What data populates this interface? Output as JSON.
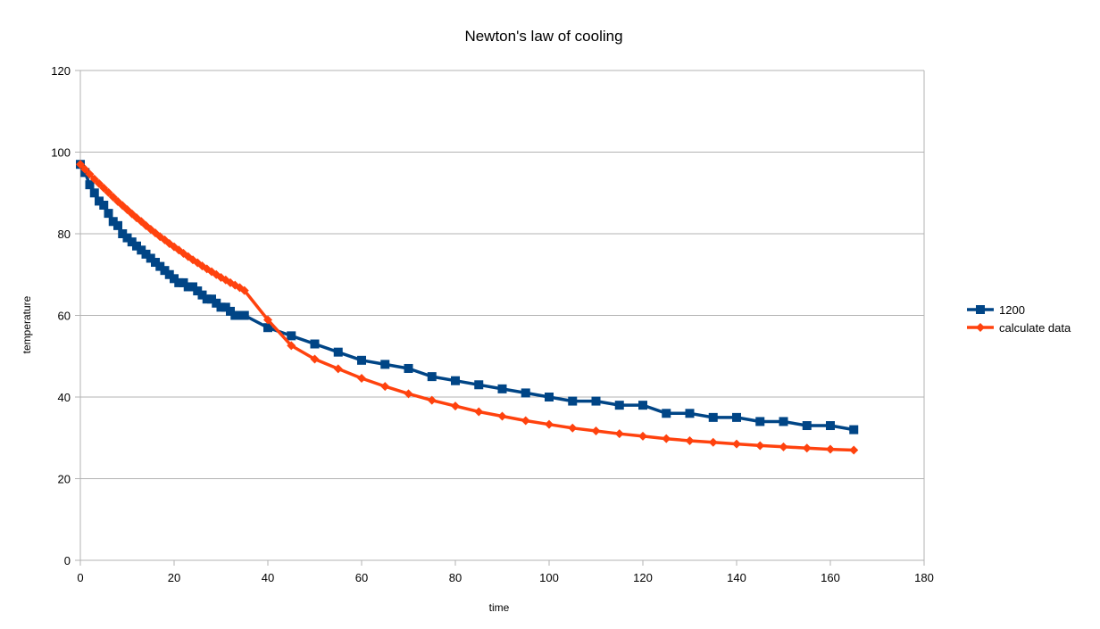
{
  "chart_data": {
    "type": "line",
    "title": "Newton's law of cooling",
    "xlabel": "time",
    "ylabel": "temperature",
    "xlim": [
      0,
      180
    ],
    "ylim": [
      0,
      120
    ],
    "xticks": [
      0,
      20,
      40,
      60,
      80,
      100,
      120,
      140,
      160,
      180
    ],
    "yticks": [
      0,
      20,
      40,
      60,
      80,
      100,
      120
    ],
    "grid": "horizontal",
    "legend_position": "right",
    "series": [
      {
        "name": "1200",
        "color": "#004586",
        "marker": "square",
        "x": [
          0,
          1,
          2,
          3,
          4,
          5,
          6,
          7,
          8,
          9,
          10,
          11,
          12,
          13,
          14,
          15,
          16,
          17,
          18,
          19,
          20,
          21,
          22,
          23,
          24,
          25,
          26,
          27,
          28,
          29,
          30,
          31,
          32,
          33,
          34,
          35,
          40,
          45,
          50,
          55,
          60,
          65,
          70,
          75,
          80,
          85,
          90,
          95,
          100,
          105,
          110,
          115,
          120,
          125,
          130,
          135,
          140,
          145,
          150,
          155,
          160,
          165
        ],
        "y": [
          97,
          95,
          92,
          90,
          88,
          87,
          85,
          83,
          82,
          80,
          79,
          78,
          77,
          76,
          75,
          74,
          73,
          72,
          71,
          70,
          69,
          68,
          68,
          67,
          67,
          66,
          65,
          64,
          64,
          63,
          62,
          62,
          61,
          60,
          60,
          60,
          57,
          55,
          53,
          51,
          49,
          48,
          47,
          45,
          44,
          43,
          42,
          41,
          40,
          39,
          39,
          38,
          38,
          36,
          36,
          35,
          35,
          34,
          34,
          33,
          33,
          32
        ]
      },
      {
        "name": "calculate data",
        "color": "#ff420e",
        "marker": "diamond",
        "x": [
          0,
          1,
          2,
          3,
          4,
          5,
          6,
          7,
          8,
          9,
          10,
          11,
          12,
          13,
          14,
          15,
          16,
          17,
          18,
          19,
          20,
          21,
          22,
          23,
          24,
          25,
          26,
          27,
          28,
          29,
          30,
          31,
          32,
          33,
          34,
          35,
          40,
          45,
          50,
          55,
          60,
          65,
          70,
          75,
          80,
          85,
          90,
          95,
          100,
          105,
          110,
          115,
          120,
          125,
          130,
          135,
          140,
          145,
          150,
          155,
          160,
          165
        ],
        "y": [
          97,
          95.8,
          94.6,
          93.4,
          92.3,
          91.2,
          90.1,
          89.0,
          87.9,
          86.9,
          85.9,
          84.9,
          83.9,
          83.0,
          82.0,
          81.1,
          80.2,
          79.3,
          78.5,
          77.6,
          76.8,
          76.0,
          75.2,
          74.4,
          73.6,
          72.9,
          72.1,
          71.4,
          70.7,
          70.0,
          69.3,
          68.7,
          68.0,
          67.4,
          66.8,
          66.1,
          58.9,
          52.6,
          49.3,
          46.9,
          44.6,
          42.6,
          40.8,
          39.2,
          37.8,
          36.4,
          35.3,
          34.2,
          33.3,
          32.4,
          31.7,
          31.0,
          30.4,
          29.8,
          29.3,
          28.9,
          28.5,
          28.1,
          27.8,
          27.5,
          27.2,
          27.0
        ]
      }
    ]
  }
}
